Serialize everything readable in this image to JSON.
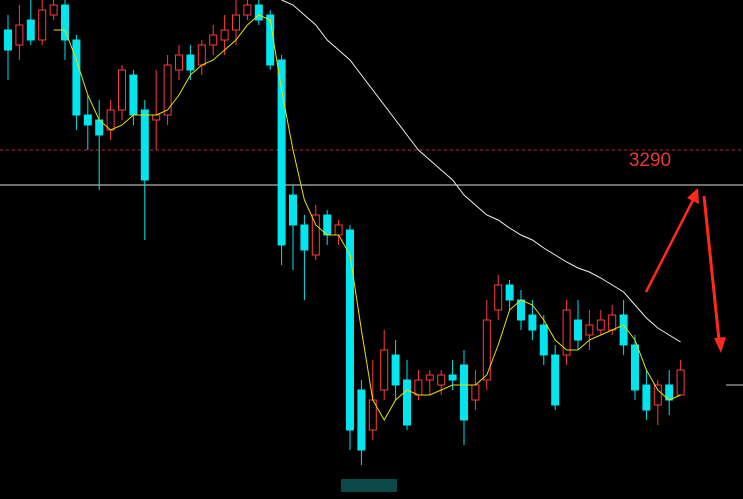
{
  "chart_data": {
    "type": "candlestick",
    "ylim": [
      3115.5,
      3365
    ],
    "up_color": "#ff3b3b",
    "down_color": "#00e5ee",
    "open": [
      3350,
      3342.5,
      3355,
      3345,
      3357.5,
      3362.5,
      3345,
      3307.5,
      3305,
      3300,
      3310,
      3327.5,
      3310,
      3305,
      3307.5,
      3330,
      3337.5,
      3332.5,
      3342.5,
      3345,
      3350,
      3357.5,
      3362.5,
      3357.5,
      3335,
      3267.5,
      3252.5,
      3237.5,
      3257.5,
      3247.5,
      3250,
      3170,
      3150,
      3170,
      3187.5,
      3175,
      3167.5,
      3175,
      3172.5,
      3177.5,
      3182.5,
      3165,
      3175,
      3210,
      3222.5,
      3215,
      3207.5,
      3202.5,
      3187.5,
      3187.5,
      3205,
      3197.5,
      3200,
      3200,
      3207.5,
      3192.5,
      3172.5,
      3162.5,
      3172.5,
      3167.5
    ],
    "close": [
      3340,
      3352.5,
      3345,
      3360,
      3362.5,
      3345,
      3307.5,
      3302.5,
      3297.5,
      3310,
      3330,
      3307.5,
      3275,
      3307.5,
      3332.5,
      3337.5,
      3330,
      3342.5,
      3347.5,
      3350,
      3357.5,
      3362.5,
      3355,
      3332.5,
      3242.5,
      3252.5,
      3240,
      3257.5,
      3247.5,
      3252.5,
      3150,
      3140,
      3165,
      3190,
      3172.5,
      3152.5,
      3175,
      3177.5,
      3177.5,
      3175,
      3155,
      3172.5,
      3205,
      3222.5,
      3215,
      3205,
      3200,
      3187.5,
      3162.5,
      3210,
      3195,
      3202.5,
      3205,
      3207.5,
      3192.5,
      3170,
      3160,
      3172.5,
      3165,
      3180
    ],
    "high": [
      3357.5,
      3362.5,
      3365,
      3365,
      3365,
      3365,
      3347.5,
      3317.5,
      3315,
      3315,
      3332.5,
      3330,
      3315,
      3330,
      3337.5,
      3342.5,
      3342.5,
      3345,
      3352.5,
      3357.5,
      3365,
      3365,
      3365,
      3360,
      3337.5,
      3272.5,
      3257.5,
      3262.5,
      3260,
      3255,
      3252.5,
      3175,
      3185,
      3200,
      3195,
      3185,
      3180,
      3180,
      3180,
      3185,
      3190,
      3180,
      3215,
      3227.5,
      3225,
      3220,
      3215,
      3207.5,
      3192.5,
      3215,
      3215,
      3210,
      3210,
      3212.5,
      3215,
      3197.5,
      3180,
      3175,
      3180,
      3185
    ],
    "low": [
      3325,
      3335,
      3342.5,
      3342.5,
      3355,
      3335,
      3300,
      3290,
      3270,
      3295,
      3305,
      3302.5,
      3245,
      3290,
      3302.5,
      3325,
      3325,
      3327.5,
      3337.5,
      3337.5,
      3342.5,
      3355,
      3352.5,
      3330,
      3232.5,
      3230,
      3215,
      3235,
      3242.5,
      3242.5,
      3140,
      3132.5,
      3145,
      3165,
      3165,
      3150,
      3165,
      3167.5,
      3167.5,
      3170,
      3142.5,
      3160,
      3170,
      3205,
      3210,
      3200,
      3195,
      3182.5,
      3160,
      3182.5,
      3190,
      3190,
      3197.5,
      3197.5,
      3187.5,
      3165,
      3155,
      3152.5,
      3157.5,
      3167.5
    ],
    "ma_lines": [
      {
        "color": "#e8e000",
        "values": [
          null,
          null,
          null,
          null,
          3350,
          3350,
          3335,
          3317.5,
          3305,
          3300,
          3302.5,
          3307.5,
          3307.5,
          3307.5,
          3310,
          3317.5,
          3327.5,
          3332.5,
          3335,
          3340,
          3345,
          3352.5,
          3357.5,
          3355,
          3320,
          3290,
          3265,
          3252.5,
          3247.5,
          3247.5,
          3237.5,
          3200,
          3165,
          3155,
          3165,
          3170,
          3167.5,
          3167.5,
          3170,
          3172.5,
          3172.5,
          3172.5,
          3177.5,
          3192.5,
          3210,
          3215,
          3212.5,
          3205,
          3195,
          3190,
          3190,
          3195,
          3197.5,
          3200,
          3202.5,
          3195,
          3180,
          3170,
          3165,
          3167.5
        ]
      },
      {
        "color": "#f0f0f0",
        "values": [
          null,
          null,
          null,
          null,
          null,
          null,
          null,
          null,
          null,
          null,
          null,
          null,
          null,
          null,
          null,
          null,
          null,
          null,
          null,
          null,
          null,
          null,
          null,
          null,
          3365,
          3362.5,
          3357.5,
          3352.5,
          3345,
          3340,
          3335,
          3327.5,
          3320,
          3312.5,
          3305,
          3297.5,
          3290,
          3285,
          3280,
          3275,
          3267.5,
          3262.5,
          3257.5,
          3255,
          3251,
          3247.5,
          3245,
          3241,
          3237.5,
          3234,
          3231,
          3229,
          3226,
          3222.5,
          3219,
          3212.5,
          3206,
          3201,
          3197.5,
          3194
        ]
      }
    ],
    "levels": [
      {
        "value": 3290,
        "color": "#c62828",
        "dashed": true
      },
      {
        "value": 3272.5,
        "color": "#e0e0e0",
        "dashed": false
      }
    ]
  }
}
